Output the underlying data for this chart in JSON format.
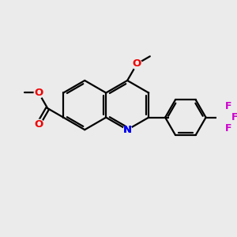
{
  "background_color": "#ebebeb",
  "bond_color": "#000000",
  "atom_colors": {
    "N": "#0000ee",
    "O": "#ee0000",
    "F": "#cc00cc",
    "C": "#000000"
  },
  "figsize": [
    3.0,
    3.0
  ],
  "dpi": 100
}
